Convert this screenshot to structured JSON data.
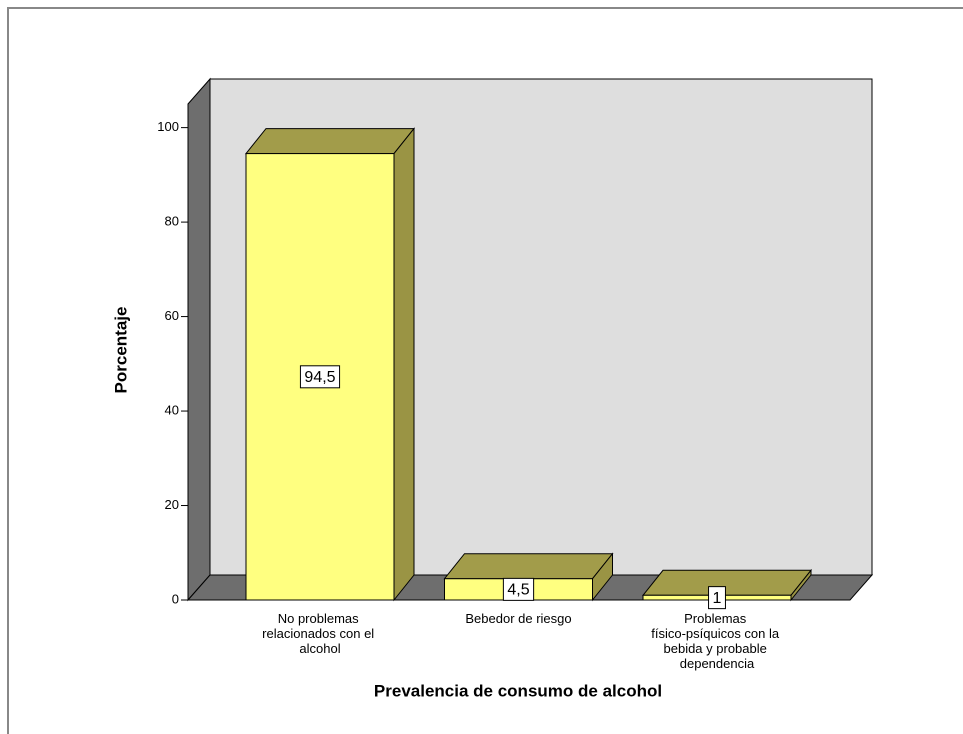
{
  "chart_data": {
    "type": "bar3d",
    "categories": [
      "No problemas relacionados con el alcohol",
      "Bebedor de riesgo",
      "Problemas físico-psíquicos con la bebida y probable dependencia"
    ],
    "values": [
      94.5,
      4.5,
      1
    ],
    "value_labels": [
      "94,5",
      "4,5",
      "1"
    ],
    "color": "#ffff80",
    "ylim": [
      0,
      105
    ],
    "yticks": [
      0,
      20,
      40,
      60,
      80,
      100
    ],
    "ylabel": "Porcentaje",
    "xlabel": "Prevalencia de consumo de alcohol"
  }
}
